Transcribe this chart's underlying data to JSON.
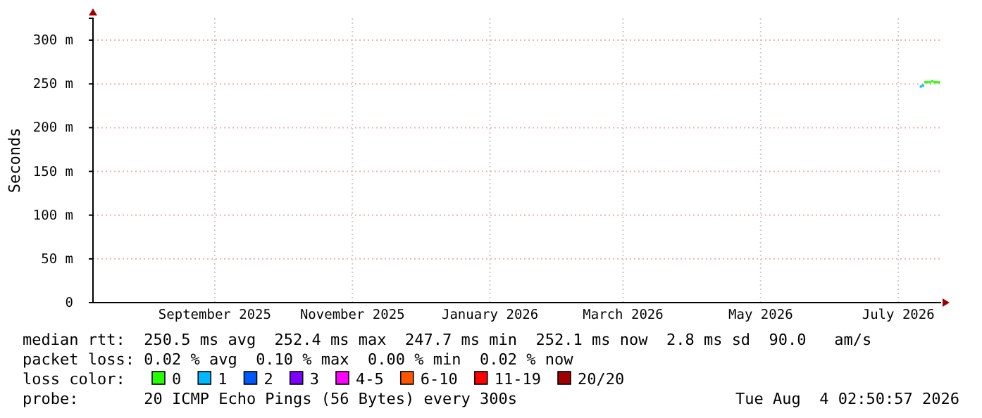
{
  "chart_data": {
    "type": "scatter",
    "ylabel": "Seconds",
    "marker": "square",
    "grid": true,
    "legend": "bottom",
    "legend_title": "loss color:",
    "xlim": [
      "2025-07-24",
      "2026-08-04"
    ],
    "xticks": [
      {
        "value": "2025-09-16",
        "label": "September 2025"
      },
      {
        "value": "2025-11-16",
        "label": "November 2025"
      },
      {
        "value": "2026-01-16",
        "label": "January 2026"
      },
      {
        "value": "2026-03-16",
        "label": "March 2026"
      },
      {
        "value": "2026-05-16",
        "label": "May 2026"
      },
      {
        "value": "2026-07-16",
        "label": "July 2026"
      }
    ],
    "ylim": [
      0,
      325
    ],
    "yticks": [
      0,
      {
        "value": 50,
        "label": "50 m"
      },
      {
        "value": 100,
        "label": "100 m"
      },
      {
        "value": 150,
        "label": "150 m"
      },
      {
        "value": 200,
        "label": "200 m"
      },
      {
        "value": 250,
        "label": "250 m"
      },
      {
        "value": 300,
        "label": "300 m"
      }
    ],
    "series": [
      {
        "name": "0",
        "color": "#26ff00",
        "x": [
          "2026-07-28",
          "2026-07-29",
          "2026-07-30",
          "2026-07-31",
          "2026-08-01",
          "2026-08-02",
          "2026-08-03"
        ],
        "values": [
          252,
          252,
          252,
          253,
          252,
          252,
          252
        ]
      },
      {
        "name": "1",
        "color": "#00b8ff",
        "x": [
          "2026-07-26",
          "2026-07-27"
        ],
        "values": [
          247,
          248
        ]
      },
      {
        "name": "2",
        "color": "#0059ff"
      },
      {
        "name": "3",
        "color": "#7e00ff"
      },
      {
        "name": "4-5",
        "color": "#ff00ff"
      },
      {
        "name": "6-10",
        "color": "#ff5500"
      },
      {
        "name": "11-19",
        "color": "#ff0000"
      },
      {
        "name": "20/20",
        "color": "#a10000"
      }
    ],
    "annotations": [
      "median rtt:  250.5 ms avg  252.4 ms max  247.7 ms min  252.1 ms now  2.8 ms sd  90.0   am/s",
      "packet loss: 0.02 % avg  0.10 % max  0.00 % min  0.02 % now",
      "probe:       20 ICMP Echo Pings (56 Bytes) every 300s",
      "Tue Aug  4 02:50:57 2026"
    ]
  }
}
